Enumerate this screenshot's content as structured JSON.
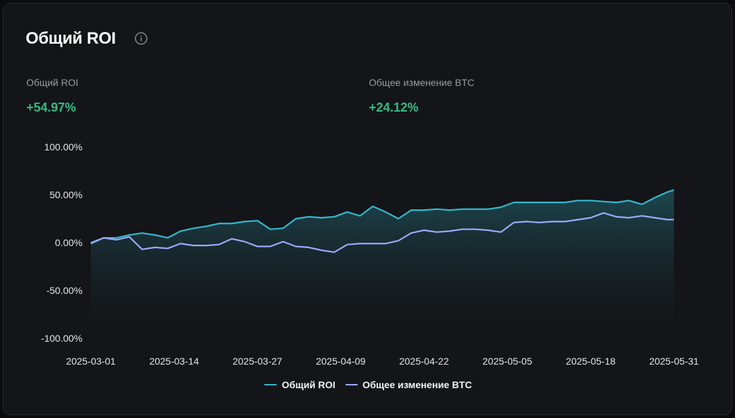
{
  "card": {
    "title": "Общий ROI",
    "info_icon": "info-icon",
    "stats": [
      {
        "label": "Общий ROI",
        "value": "+54.97%"
      },
      {
        "label": "Общее изменение BTC",
        "value": "+24.12%"
      }
    ]
  },
  "colors": {
    "roi": "#33b9cf",
    "btc": "#9ea8ff",
    "positive": "#2ebd85",
    "fill_top": "#1d4a52",
    "fill_bottom": "#141518"
  },
  "chart_data": {
    "type": "line",
    "title": "",
    "xlabel": "",
    "ylabel": "",
    "ylim": [
      -100,
      100
    ],
    "yticks": [
      "100.00%",
      "50.00%",
      "0.00%",
      "-50.00%",
      "-100.00%"
    ],
    "ytick_values": [
      100,
      50,
      0,
      -50,
      -100
    ],
    "xticks": [
      "2025-03-01",
      "2025-03-14",
      "2025-03-27",
      "2025-04-09",
      "2025-04-22",
      "2025-05-05",
      "2025-05-18",
      "2025-05-31"
    ],
    "x": [
      "2025-03-01",
      "2025-03-03",
      "2025-03-05",
      "2025-03-07",
      "2025-03-09",
      "2025-03-11",
      "2025-03-13",
      "2025-03-15",
      "2025-03-17",
      "2025-03-19",
      "2025-03-21",
      "2025-03-23",
      "2025-03-25",
      "2025-03-27",
      "2025-03-29",
      "2025-03-31",
      "2025-04-02",
      "2025-04-04",
      "2025-04-06",
      "2025-04-08",
      "2025-04-10",
      "2025-04-12",
      "2025-04-14",
      "2025-04-16",
      "2025-04-18",
      "2025-04-20",
      "2025-04-22",
      "2025-04-24",
      "2025-04-26",
      "2025-04-28",
      "2025-04-30",
      "2025-05-02",
      "2025-05-04",
      "2025-05-06",
      "2025-05-08",
      "2025-05-10",
      "2025-05-12",
      "2025-05-14",
      "2025-05-16",
      "2025-05-18",
      "2025-05-20",
      "2025-05-22",
      "2025-05-24",
      "2025-05-26",
      "2025-05-28",
      "2025-05-30",
      "2025-05-31"
    ],
    "series": [
      {
        "name": "Общий ROI",
        "values": [
          0,
          5,
          5,
          8,
          10,
          8,
          5,
          12,
          15,
          17,
          20,
          20,
          22,
          23,
          14,
          15,
          25,
          27,
          26,
          27,
          32,
          28,
          38,
          32,
          25,
          34,
          34,
          35,
          34,
          35,
          35,
          35,
          37,
          42,
          42,
          42,
          42,
          42,
          44,
          44,
          43,
          42,
          44,
          40,
          47,
          53,
          54.97
        ]
      },
      {
        "name": "Общее изменение BTC",
        "values": [
          -1,
          5,
          3,
          6,
          -7,
          -5,
          -6,
          -1,
          -3,
          -3,
          -2,
          4,
          1,
          -4,
          -4,
          1,
          -4,
          -5,
          -8,
          -10,
          -2,
          -1,
          -1,
          -1,
          2,
          10,
          13,
          11,
          12,
          14,
          14,
          13,
          11,
          21,
          22,
          21,
          22,
          22,
          24,
          26,
          31,
          27,
          26,
          28,
          26,
          24,
          24.12
        ]
      }
    ],
    "legend": "bottom-center",
    "grid": false
  }
}
